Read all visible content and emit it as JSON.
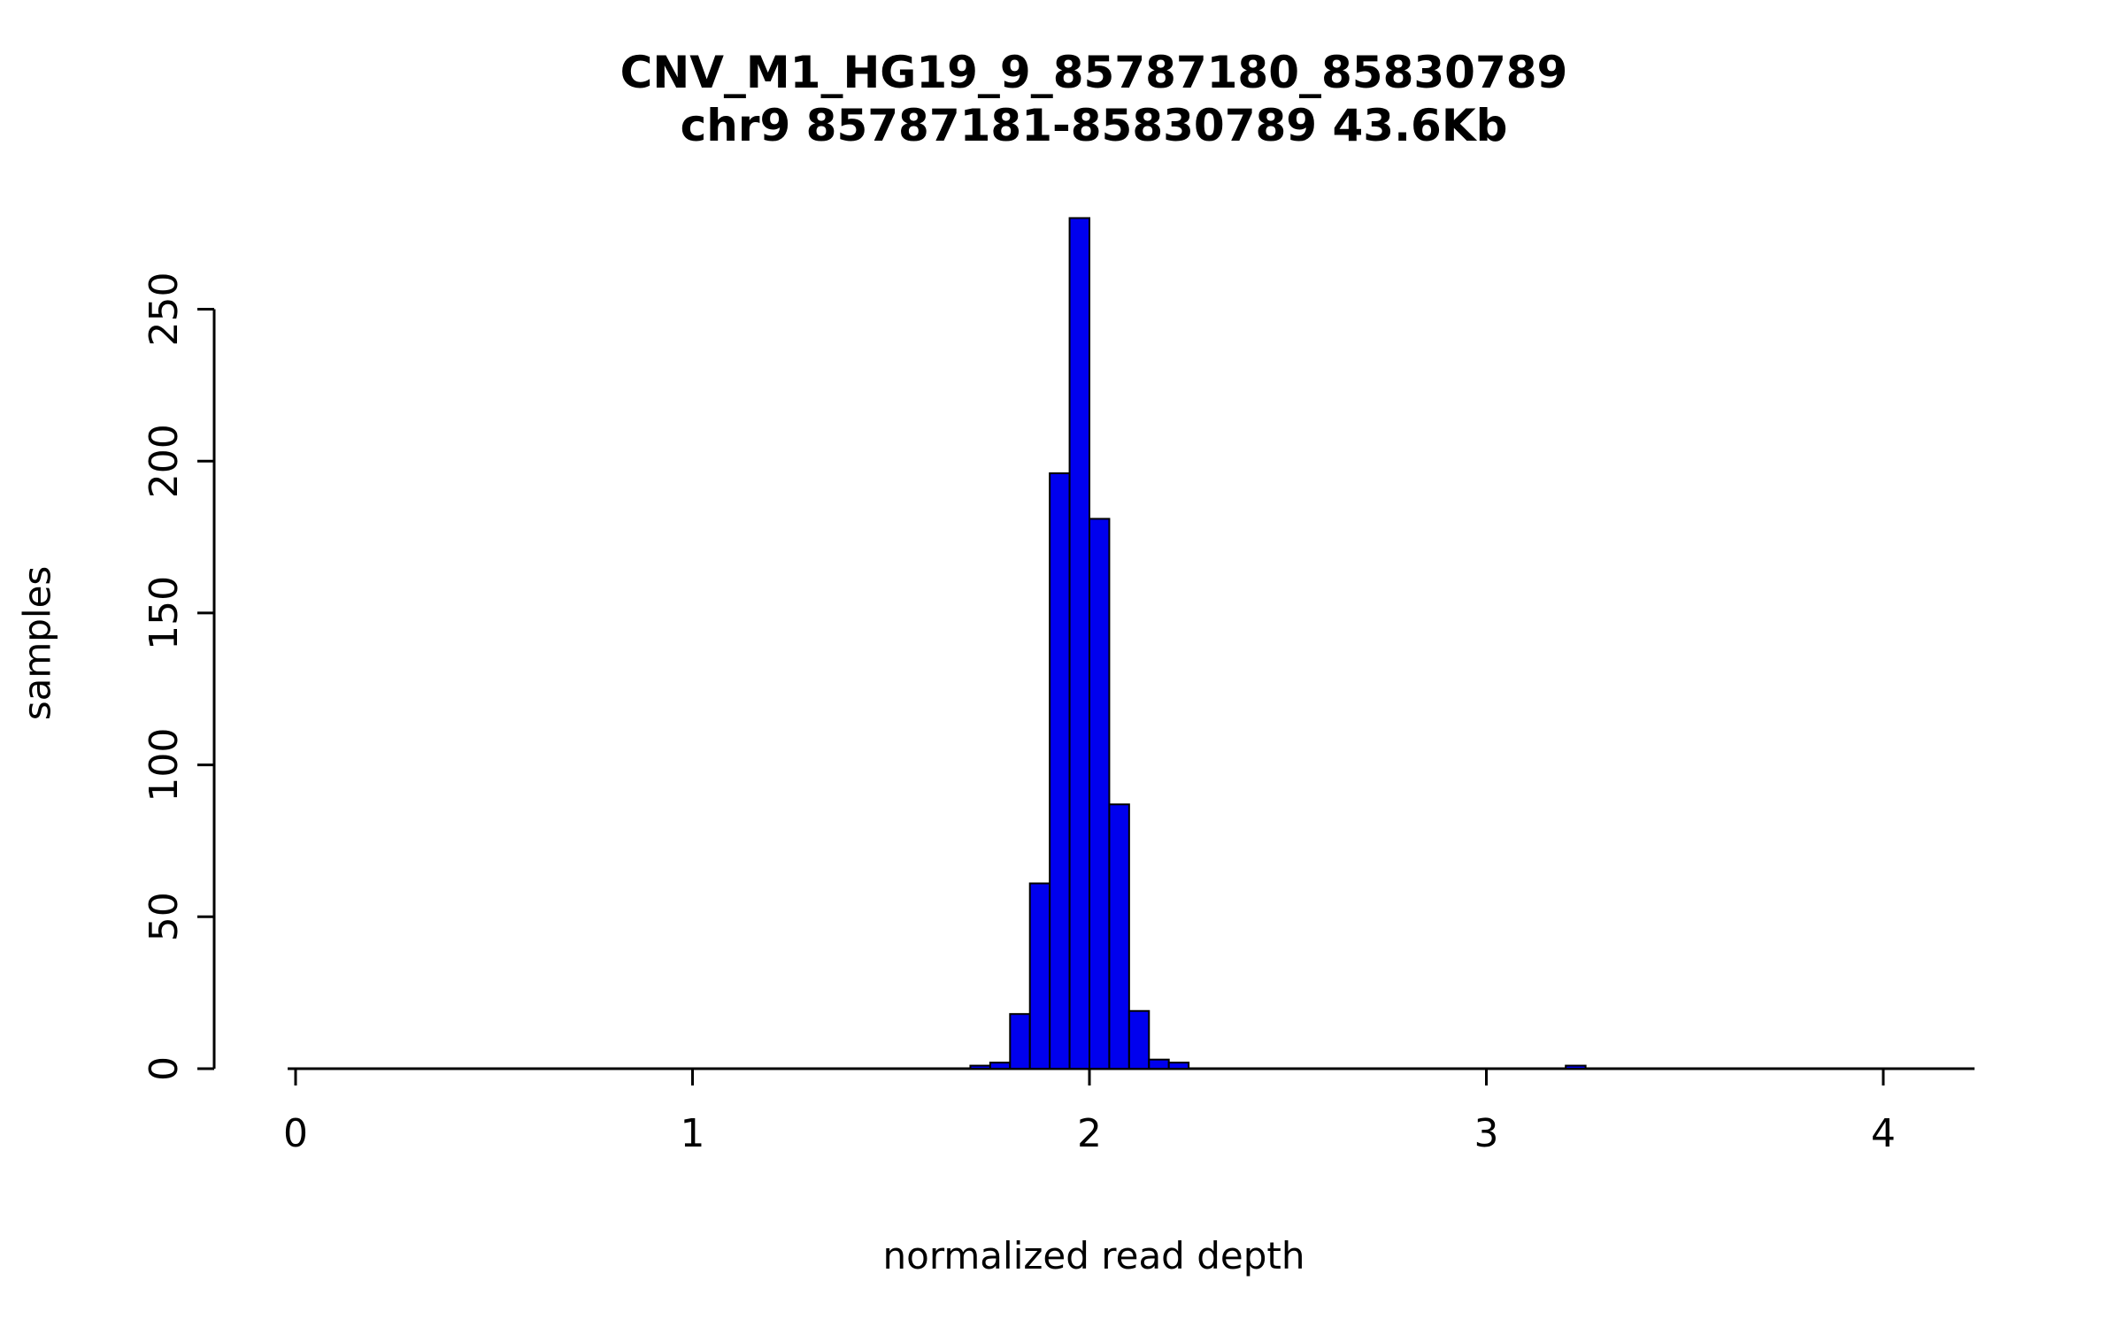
{
  "page": {
    "background_color": "#FFFFFF",
    "text_color": "#000000"
  },
  "chart_data": {
    "type": "bar",
    "subtype": "histogram",
    "title": "CNV_M1_HG19_9_85787180_85830789",
    "subtitle": "chr9 85787181-85830789 43.6Kb",
    "xlabel": "normalized read depth",
    "ylabel": "samples",
    "xlim": [
      -0.02,
      4.23
    ],
    "ylim": [
      0,
      280
    ],
    "x_ticks": [
      0,
      1,
      2,
      3,
      4
    ],
    "y_ticks": [
      0,
      50,
      100,
      150,
      200,
      250
    ],
    "grid": false,
    "legend": false,
    "bar_color": "#0000EE",
    "bar_edge_color": "#000000",
    "bin_width": 0.05,
    "bins": [
      {
        "x0": 1.7,
        "x1": 1.75,
        "count": 1
      },
      {
        "x0": 1.75,
        "x1": 1.8,
        "count": 2
      },
      {
        "x0": 1.8,
        "x1": 1.85,
        "count": 18
      },
      {
        "x0": 1.85,
        "x1": 1.9,
        "count": 61
      },
      {
        "x0": 1.9,
        "x1": 1.95,
        "count": 196
      },
      {
        "x0": 1.95,
        "x1": 2.0,
        "count": 280
      },
      {
        "x0": 2.0,
        "x1": 2.05,
        "count": 181
      },
      {
        "x0": 2.05,
        "x1": 2.1,
        "count": 87
      },
      {
        "x0": 2.1,
        "x1": 2.15,
        "count": 19
      },
      {
        "x0": 2.15,
        "x1": 2.2,
        "count": 3
      },
      {
        "x0": 2.2,
        "x1": 2.25,
        "count": 2
      },
      {
        "x0": 3.2,
        "x1": 3.25,
        "count": 1
      }
    ]
  }
}
